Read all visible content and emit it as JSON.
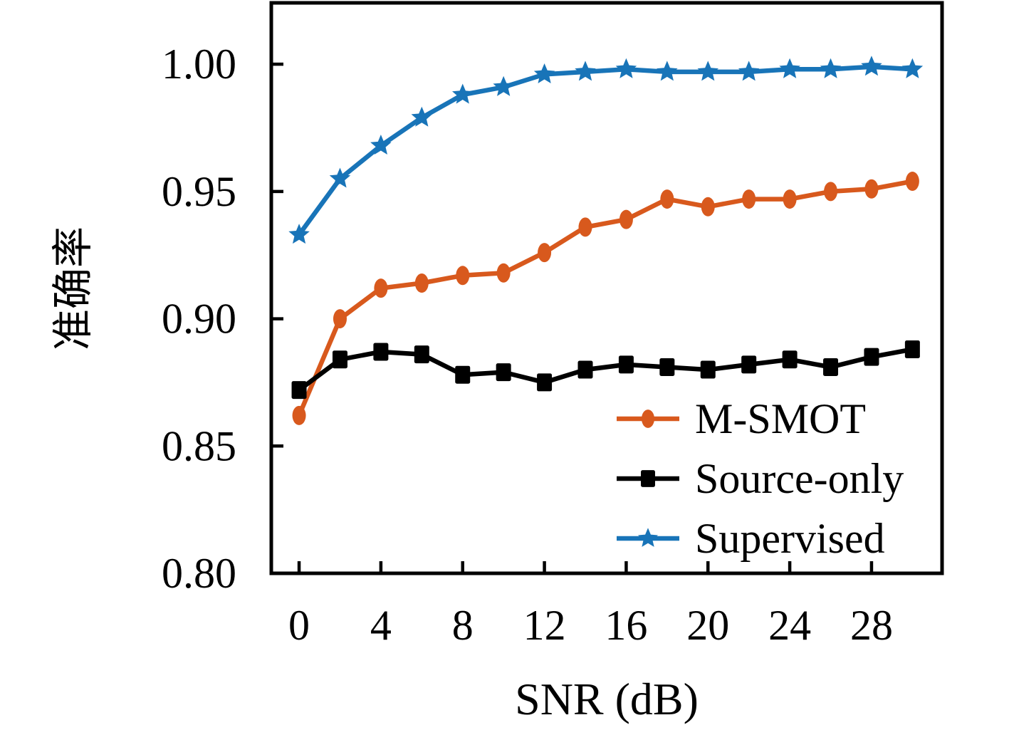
{
  "figure": {
    "background": "#ffffff",
    "axis_color": "#000000"
  },
  "chart_data": {
    "type": "line",
    "title": "",
    "xlabel": "SNR (dB)",
    "ylabel": "准确率",
    "grid": false,
    "xlim": [
      -1.36,
      31.45
    ],
    "ylim": [
      0.8,
      1.0241
    ],
    "x": [
      0,
      2,
      4,
      6,
      8,
      10,
      12,
      14,
      16,
      18,
      20,
      22,
      24,
      26,
      28,
      30
    ],
    "series": [
      {
        "name": "M-SMOT",
        "color": "#d8591d",
        "marker": "ellipse",
        "values": [
          0.862,
          0.9,
          0.912,
          0.914,
          0.917,
          0.918,
          0.926,
          0.936,
          0.939,
          0.947,
          0.944,
          0.947,
          0.947,
          0.95,
          0.951,
          0.954
        ]
      },
      {
        "name": "Source-only",
        "color": "#000000",
        "marker": "square",
        "values": [
          0.872,
          0.884,
          0.887,
          0.886,
          0.878,
          0.879,
          0.875,
          0.88,
          0.882,
          0.881,
          0.88,
          0.882,
          0.884,
          0.881,
          0.885,
          0.888
        ]
      },
      {
        "name": "Supervised",
        "color": "#1874b8",
        "marker": "star",
        "values": [
          0.933,
          0.955,
          0.968,
          0.979,
          0.988,
          0.991,
          0.996,
          0.997,
          0.998,
          0.997,
          0.997,
          0.997,
          0.998,
          0.998,
          0.999,
          0.998
        ]
      }
    ],
    "xticks": {
      "values": [
        0,
        4,
        8,
        12,
        16,
        20,
        24,
        28
      ],
      "labels": [
        "0",
        "4",
        "8",
        "12",
        "16",
        "20",
        "24",
        "28"
      ]
    },
    "yticks": {
      "values": [
        0.8,
        0.85,
        0.9,
        0.95,
        1.0
      ],
      "labels": [
        "0.80",
        "0.85",
        "0.90",
        "0.95",
        "1.00"
      ]
    },
    "legend": {
      "position": "lower right",
      "frame": false,
      "entries": [
        "M-SMOT",
        "Source-only",
        "Supervised"
      ]
    }
  }
}
